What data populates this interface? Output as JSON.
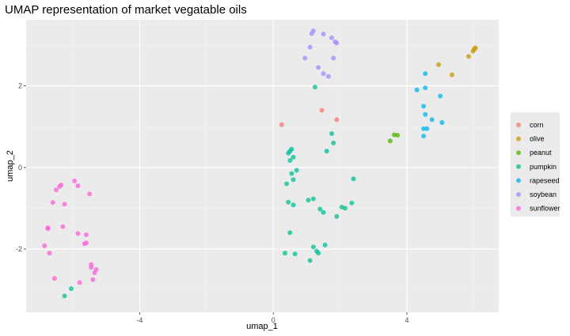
{
  "chart_data": {
    "type": "scatter",
    "title": "UMAP representation of market vegatable oils",
    "xlabel": "umap_1",
    "ylabel": "umap_2",
    "xlim": [
      -7.4,
      6.75
    ],
    "ylim": [
      -3.55,
      3.62
    ],
    "x_ticks": [
      -4,
      0,
      4
    ],
    "y_ticks": [
      -2,
      0,
      2
    ],
    "x_tick_labels": [
      "-4",
      "0",
      "4"
    ],
    "y_tick_labels": [
      "-2",
      "0",
      "2"
    ],
    "grid": true,
    "legend_position": "right",
    "series": [
      {
        "name": "corn",
        "color": "#F8766D",
        "x": [
          1.45,
          1.9,
          0.25
        ],
        "y": [
          1.4,
          1.17,
          1.05
        ]
      },
      {
        "name": "olive",
        "color": "#C49A00",
        "x": [
          4.95,
          5.35,
          5.85,
          5.98,
          6.02,
          6.05
        ],
        "y": [
          2.52,
          2.27,
          2.72,
          2.85,
          2.9,
          2.93
        ]
      },
      {
        "name": "peanut",
        "color": "#53B400",
        "x": [
          3.5,
          3.62,
          3.72
        ],
        "y": [
          0.65,
          0.8,
          0.79
        ]
      },
      {
        "name": "pumpkin",
        "color": "#00C094",
        "x": [
          1.25,
          1.75,
          1.8,
          1.6,
          0.5,
          0.45,
          0.55,
          0.6,
          0.5,
          0.7,
          0.55,
          0.6,
          0.4,
          1.05,
          1.2,
          0.45,
          0.6,
          1.4,
          1.5,
          2.05,
          2.15,
          2.35,
          2.4,
          1.9,
          0.5,
          0.35,
          0.65,
          1.1,
          1.35,
          1.2,
          1.3,
          1.55,
          -6.25,
          -6.05
        ],
        "y": [
          1.97,
          0.83,
          0.6,
          0.4,
          0.4,
          0.35,
          0.45,
          0.25,
          0.17,
          -0.07,
          -0.15,
          -0.3,
          -0.4,
          -0.8,
          -0.77,
          -0.85,
          -0.92,
          -1.02,
          -1.1,
          -0.97,
          -1.0,
          -0.87,
          -0.28,
          -1.2,
          -1.6,
          -2.1,
          -2.12,
          -2.28,
          -2.1,
          -1.95,
          -2.05,
          -1.9,
          -3.15,
          -2.97
        ]
      },
      {
        "name": "rapeseed",
        "color": "#00B6EB",
        "x": [
          4.55,
          4.55,
          4.3,
          4.5,
          5.0,
          4.55,
          4.75,
          4.5,
          5.05,
          4.6,
          4.5
        ],
        "y": [
          2.3,
          1.95,
          1.9,
          1.5,
          1.75,
          1.3,
          1.17,
          0.95,
          1.1,
          0.95,
          0.77
        ]
      },
      {
        "name": "soybean",
        "color": "#A58AFF",
        "x": [
          1.2,
          1.15,
          1.5,
          1.75,
          1.85,
          1.9,
          1.1,
          0.95,
          1.35,
          1.8,
          1.5,
          1.65
        ],
        "y": [
          3.35,
          3.28,
          3.27,
          3.18,
          3.08,
          3.05,
          2.95,
          2.68,
          2.45,
          2.68,
          2.3,
          2.23
        ]
      },
      {
        "name": "sunflower",
        "color": "#FB61D7",
        "x": [
          -5.95,
          -5.85,
          -6.35,
          -6.4,
          -6.5,
          -5.5,
          -6.6,
          -6.25,
          -6.75,
          -6.75,
          -6.3,
          -5.85,
          -5.6,
          -5.6,
          -6.85,
          -5.65,
          -5.45,
          -6.7,
          -5.3,
          -5.35,
          -5.4,
          -6.55,
          -5.8,
          -5.45
        ],
        "y": [
          -0.33,
          -0.45,
          -0.43,
          -0.47,
          -0.55,
          -0.65,
          -0.86,
          -0.9,
          -1.48,
          -1.5,
          -1.45,
          -1.62,
          -1.65,
          -1.85,
          -1.92,
          -1.87,
          -2.38,
          -2.1,
          -2.5,
          -2.58,
          -2.75,
          -2.72,
          -2.82,
          -2.45
        ]
      }
    ]
  }
}
